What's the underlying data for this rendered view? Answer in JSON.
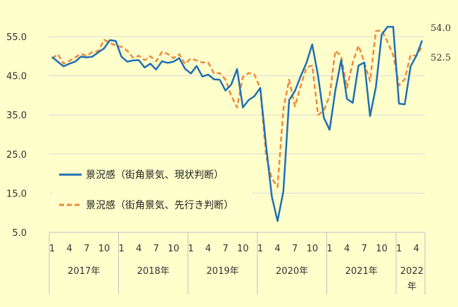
{
  "chart_data": {
    "type": "line",
    "title": "",
    "xlabel": "",
    "ylabel": "",
    "ylim": [
      5.0,
      60.0
    ],
    "yticks": [
      "5.0",
      "15.0",
      "25.0",
      "35.0",
      "45.0",
      "55.0"
    ],
    "grid": "horizontal",
    "legend_position": "lower-left",
    "x_tick_labels": [
      "1",
      "4",
      "7",
      "10",
      "1",
      "4",
      "7",
      "10",
      "1",
      "4",
      "7",
      "10",
      "1",
      "4",
      "7",
      "10",
      "1",
      "4",
      "7",
      "10",
      "1",
      "4"
    ],
    "years": [
      {
        "label": "2017年",
        "span": [
          1,
          12
        ]
      },
      {
        "label": "2018年",
        "span": [
          13,
          24
        ]
      },
      {
        "label": "2019年",
        "span": [
          25,
          36
        ]
      },
      {
        "label": "2020年",
        "span": [
          37,
          48
        ]
      },
      {
        "label": "2021年",
        "span": [
          49,
          60
        ]
      },
      {
        "label": "2022年",
        "span": [
          61,
          64
        ]
      }
    ],
    "end_labels": [
      {
        "series": 0,
        "text": "54.0"
      },
      {
        "series": 1,
        "text": "52.5"
      }
    ],
    "series": [
      {
        "name": "景況感（街角景気、現状判断）",
        "color": "#1f6fb4",
        "style": "solid",
        "values": [
          49.8,
          48.6,
          47.4,
          48.1,
          48.6,
          49.9,
          49.7,
          49.9,
          51.0,
          52.0,
          54.1,
          53.9,
          49.9,
          48.6,
          48.9,
          49.0,
          47.1,
          48.1,
          46.6,
          48.7,
          48.3,
          48.6,
          49.5,
          46.8,
          45.6,
          47.5,
          44.8,
          45.3,
          44.1,
          44.0,
          41.2,
          42.8,
          46.7,
          36.9,
          38.8,
          39.8,
          41.9,
          27.4,
          14.2,
          7.9,
          15.5,
          38.8,
          41.1,
          44.9,
          48.3,
          53.0,
          45.0,
          34.3,
          31.2,
          41.3,
          49.0,
          39.1,
          38.1,
          47.6,
          48.4,
          34.7,
          42.1,
          55.5,
          57.5,
          57.5,
          37.9,
          37.7,
          47.4,
          50.1,
          54.0
        ]
      },
      {
        "name": "景況感（街角景気、先行き判断）",
        "color": "#ee8a3a",
        "style": "dashed",
        "values": [
          49.4,
          50.5,
          48.1,
          48.8,
          49.7,
          50.6,
          50.1,
          51.1,
          51.3,
          54.2,
          53.4,
          52.7,
          52.4,
          51.4,
          49.6,
          50.1,
          49.0,
          50.0,
          48.7,
          51.1,
          50.6,
          49.5,
          50.5,
          48.0,
          49.4,
          48.9,
          48.4,
          48.4,
          45.6,
          45.7,
          44.0,
          39.8,
          36.9,
          44.7,
          45.7,
          45.3,
          41.8,
          24.6,
          18.8,
          16.6,
          36.5,
          44.0,
          37.2,
          42.4,
          47.1,
          47.6,
          35.0,
          36.1,
          39.9,
          51.4,
          50.0,
          41.9,
          48.4,
          52.7,
          48.4,
          43.6,
          56.4,
          56.6,
          53.7,
          50.3,
          42.5,
          44.1,
          50.3,
          50.1,
          52.5
        ]
      }
    ]
  }
}
